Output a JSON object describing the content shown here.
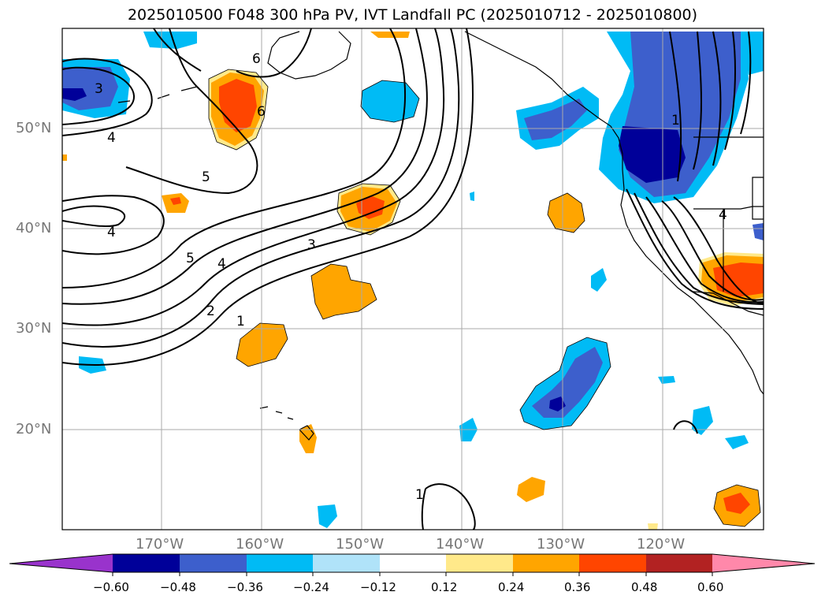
{
  "title": "2025010500 F048 300 hPa PV, IVT Landfall PC (2025010712 - 2025010800)",
  "map": {
    "lat_labels": [
      "50°N",
      "40°N",
      "30°N",
      "20°N"
    ],
    "lon_labels": [
      "170°W",
      "160°W",
      "150°W",
      "140°W",
      "130°W",
      "120°W"
    ],
    "contour_labels": [
      "3",
      "4",
      "6",
      "6",
      "5",
      "4",
      "5",
      "4",
      "3",
      "2",
      "1",
      "1",
      "1",
      "4"
    ]
  },
  "colorbar": {
    "tick_labels": [
      "−0.60",
      "−0.48",
      "−0.36",
      "−0.24",
      "−0.12",
      "0.12",
      "0.24",
      "0.36",
      "0.48",
      "0.60"
    ],
    "colors": [
      "#9933cc",
      "#000099",
      "#3d5fcc",
      "#00bbf5",
      "#b0e3f9",
      "#ffffff",
      "#ffe98a",
      "#ffa500",
      "#ff4500",
      "#b22222",
      "#ff88aa"
    ]
  }
}
